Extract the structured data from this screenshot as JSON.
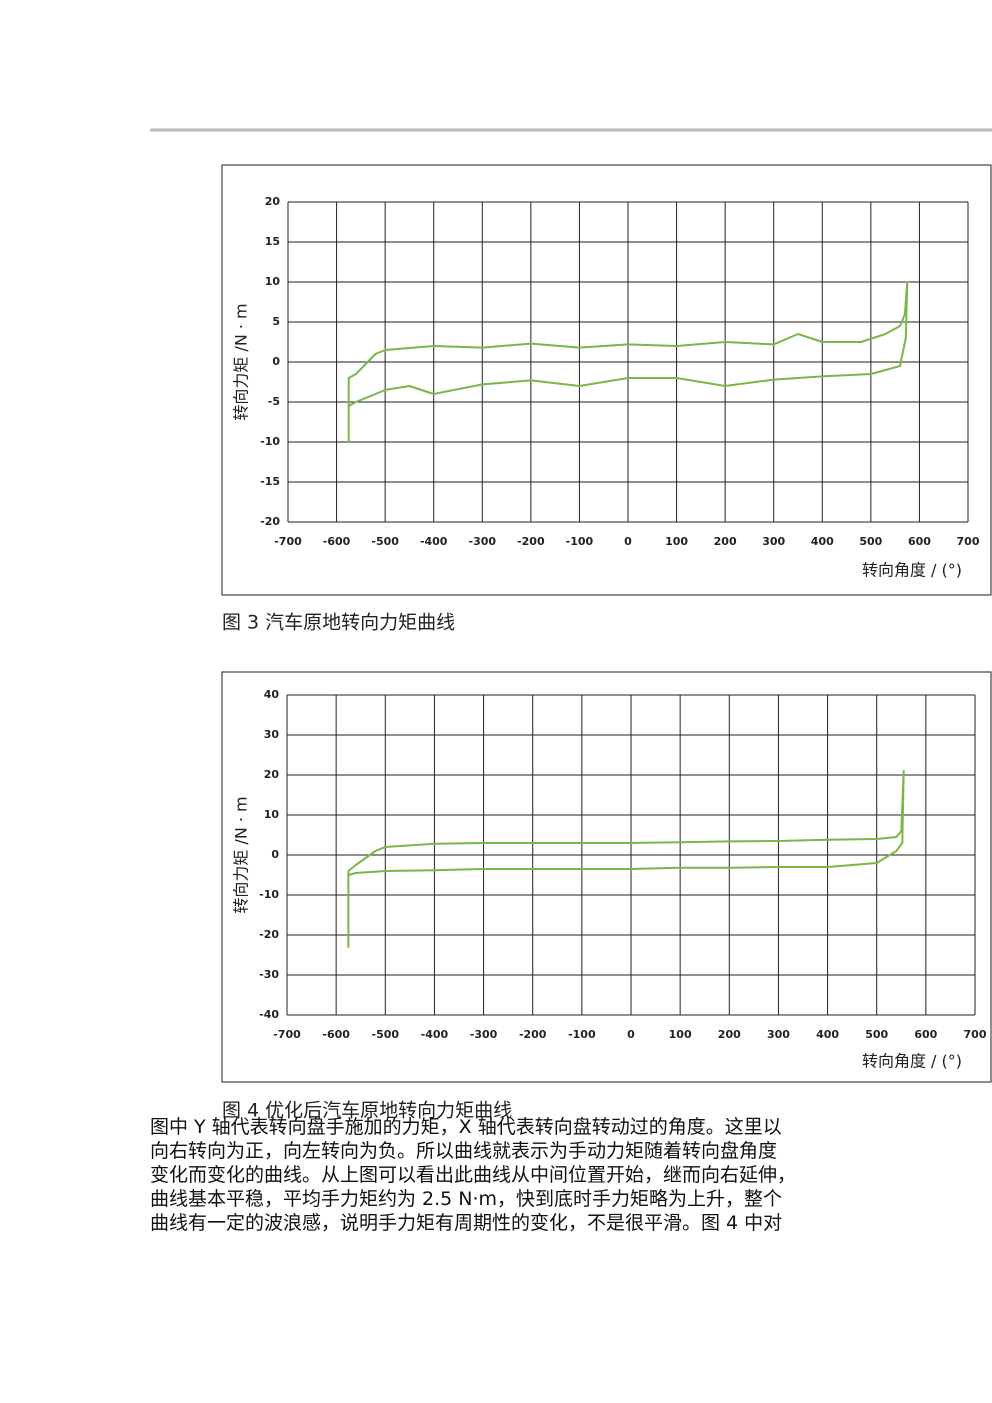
{
  "chart_data": [
    {
      "type": "line",
      "title": "图 3  汽车原地转向力矩曲线",
      "xlabel": "转向角度 / (°)",
      "ylabel": "转向力矩 /N · m",
      "xlim": [
        -700,
        700
      ],
      "ylim": [
        -20,
        20
      ],
      "xticks": [
        -700,
        -600,
        -500,
        -400,
        -300,
        -200,
        -100,
        0,
        100,
        200,
        300,
        400,
        500,
        600,
        700
      ],
      "yticks": [
        -20,
        -15,
        -10,
        -5,
        0,
        5,
        10,
        15,
        20
      ],
      "grid": true,
      "x": [
        0,
        100,
        200,
        300,
        350,
        400,
        480,
        530,
        560,
        570,
        575,
        572,
        560,
        530,
        500,
        400,
        300,
        200,
        100,
        0,
        -100,
        -200,
        -300,
        -400,
        -450,
        -500,
        -560,
        -575,
        -575,
        -575,
        -560,
        -520,
        -500,
        -400,
        -300,
        -200,
        -100,
        0
      ],
      "series": [
        {
          "color": "#7ab648",
          "values": [
            2.2,
            2,
            2.5,
            2.2,
            3.5,
            2.5,
            2.5,
            3.5,
            4.5,
            6,
            10,
            3,
            -0.5,
            -1,
            -1.5,
            -1.8,
            -2.2,
            -3,
            -2,
            -2,
            -3,
            -2.3,
            -2.8,
            -4,
            -3,
            -3.5,
            -5,
            -5.5,
            -10,
            -2,
            -1.5,
            1,
            1.5,
            2,
            1.8,
            2.3,
            1.8,
            2.2
          ]
        }
      ]
    },
    {
      "type": "line",
      "title": "图 4   优化后汽车原地转向力矩曲线",
      "xlabel": "转向角度 / (°)",
      "ylabel": "转向力矩 /N · m",
      "xlim": [
        -700,
        700
      ],
      "ylim": [
        -40,
        40
      ],
      "xticks": [
        -700,
        -600,
        -500,
        -400,
        -300,
        -200,
        -100,
        0,
        100,
        200,
        300,
        400,
        500,
        600,
        700
      ],
      "yticks": [
        -40,
        -30,
        -20,
        -10,
        0,
        10,
        20,
        30,
        40
      ],
      "grid": true,
      "x": [
        0,
        100,
        200,
        300,
        400,
        500,
        540,
        550,
        555,
        552,
        540,
        500,
        400,
        300,
        200,
        100,
        0,
        -100,
        -200,
        -300,
        -400,
        -500,
        -560,
        -575,
        -575,
        -575,
        -560,
        -520,
        -500,
        -400,
        -300,
        -200,
        -100,
        0
      ],
      "series": [
        {
          "color": "#7ab648",
          "values": [
            3,
            3.2,
            3.4,
            3.5,
            3.8,
            4,
            4.5,
            6,
            21,
            3,
            1,
            -2,
            -3,
            -3,
            -3.2,
            -3.2,
            -3.5,
            -3.5,
            -3.5,
            -3.5,
            -3.8,
            -4,
            -4.5,
            -5,
            -23,
            -4,
            -2.5,
            1,
            2,
            2.8,
            3,
            3,
            3,
            3
          ]
        }
      ]
    }
  ],
  "body": {
    "lines": [
      "图中 Y 轴代表转向盘手施加的力矩，X 轴代表转向盘转动过的角度。这里以",
      "向右转向为正，向左转向为负。所以曲线就表示为手动力矩随着转向盘角度",
      "变化而变化的曲线。从上图可以看出此曲线从中间位置开始，继而向右延伸，",
      "曲线基本平稳，平均手力矩约为 2.5 N·m，快到底时手力矩略为上升，整个",
      "曲线有一定的波浪感，说明手力矩有周期性的变化，不是很平滑。图 4 中对"
    ]
  }
}
